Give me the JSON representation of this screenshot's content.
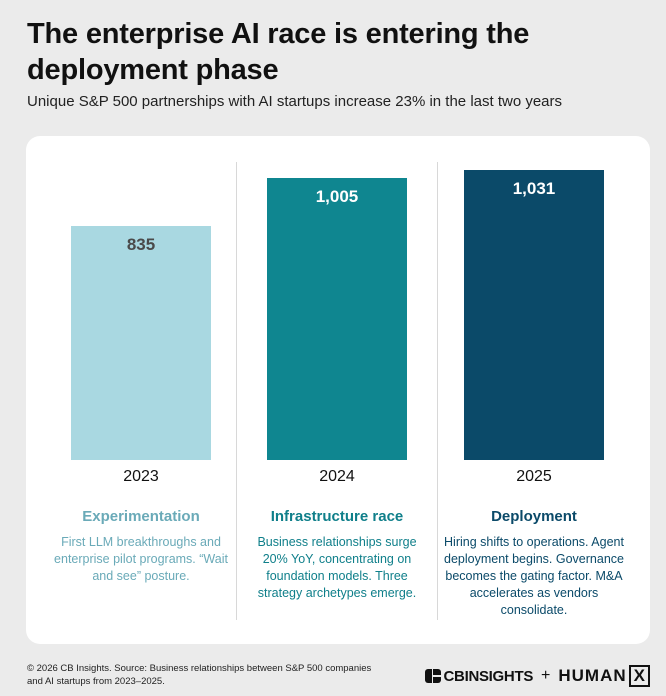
{
  "header": {
    "title": "The enterprise AI race is entering the deployment phase",
    "subtitle": "Unique S&P 500 partnerships with AI startups increase 23% in the last two years"
  },
  "chart_data": {
    "type": "bar",
    "title": "The enterprise AI race is entering the deployment phase",
    "subtitle": "Unique S&P 500 partnerships with AI startups increase 23% in the last two years",
    "categories": [
      "2023",
      "2024",
      "2025"
    ],
    "values": [
      835,
      1005,
      1031
    ],
    "value_labels": [
      "835",
      "1,005",
      "1,031"
    ],
    "colors": [
      "#a9d8e1",
      "#0f8690",
      "#0b4a69"
    ],
    "label_colors": [
      "#4a4a4a",
      "#ffffff",
      "#ffffff"
    ],
    "xlabel": "",
    "ylabel": "",
    "grid": false
  },
  "phases": [
    {
      "title": "Experimentation",
      "description": "First LLM breakthroughs and enterprise pilot programs. “Wait and see” posture.",
      "color": "#6aaab8"
    },
    {
      "title": "Infrastructure race",
      "description": "Business relationships surge 20% YoY, concentrating on foundation models. Three strategy archetypes emerge.",
      "color": "#0f7f8a"
    },
    {
      "title": "Deployment",
      "description": "Hiring shifts to operations. Agent deployment begins. Governance becomes the gating factor. M&A accelerates as vendors consolidate.",
      "color": "#0b4a69"
    }
  ],
  "footer": {
    "source": "© 2026 CB Insights. Source: Business relationships between S&P 500 companies and AI startups from 2023–2025."
  },
  "logos": {
    "cb": "CBINSIGHTS",
    "plus": "+",
    "humanx": "HUMAN",
    "humanx_x": "X"
  }
}
